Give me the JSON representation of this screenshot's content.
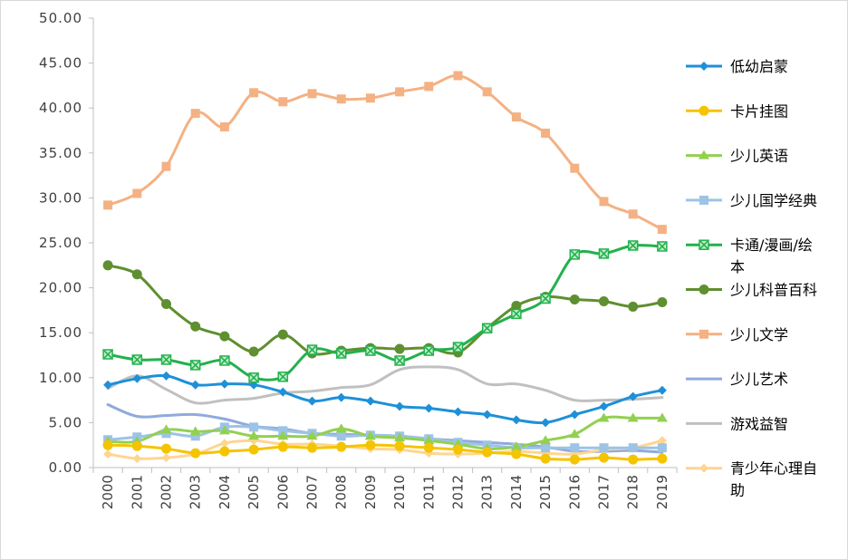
{
  "chart_data": {
    "type": "line",
    "title": "",
    "xlabel": "",
    "ylabel": "",
    "ylim": [
      0,
      50
    ],
    "y_ticks": [
      "0.00",
      "5.00",
      "10.00",
      "15.00",
      "20.00",
      "25.00",
      "30.00",
      "35.00",
      "40.00",
      "45.00",
      "50.00"
    ],
    "grid": false,
    "legend_position": "right",
    "categories": [
      "2000",
      "2001",
      "2002",
      "2003",
      "2004",
      "2005",
      "2006",
      "2007",
      "2008",
      "2009",
      "2010",
      "2011",
      "2012",
      "2013",
      "2014",
      "2015",
      "2016",
      "2017",
      "2018",
      "2019"
    ],
    "series": [
      {
        "name": "低幼启蒙",
        "color": "#1e90d8",
        "marker": "diamond",
        "values": [
          9.2,
          9.9,
          10.2,
          9.2,
          9.3,
          9.2,
          8.4,
          7.4,
          7.8,
          7.4,
          6.8,
          6.6,
          6.2,
          5.9,
          5.3,
          5.0,
          5.9,
          6.8,
          7.9,
          8.6
        ]
      },
      {
        "name": "卡片挂图",
        "color": "#f5c400",
        "marker": "circle",
        "values": [
          2.5,
          2.4,
          2.1,
          1.6,
          1.8,
          2.0,
          2.3,
          2.2,
          2.3,
          2.5,
          2.4,
          2.2,
          2.0,
          1.7,
          1.5,
          1.0,
          0.9,
          1.1,
          0.9,
          1.0
        ]
      },
      {
        "name": "少儿英语",
        "color": "#92d050",
        "marker": "triangle",
        "values": [
          2.9,
          2.9,
          4.2,
          4.0,
          4.1,
          3.5,
          3.5,
          3.5,
          4.3,
          3.5,
          3.3,
          3.0,
          2.6,
          2.1,
          2.3,
          3.0,
          3.7,
          5.5,
          5.5,
          5.5
        ]
      },
      {
        "name": "少儿国学经典",
        "color": "#9dc3e6",
        "marker": "square",
        "values": [
          3.1,
          3.4,
          3.8,
          3.5,
          4.5,
          4.5,
          4.1,
          3.8,
          3.5,
          3.6,
          3.5,
          3.2,
          2.8,
          2.5,
          2.2,
          2.2,
          2.2,
          2.2,
          2.2,
          2.2
        ]
      },
      {
        "name": "卡通/漫画/绘本",
        "color": "#22b14c",
        "marker": "cross-box",
        "values": [
          12.6,
          12.0,
          12.0,
          11.4,
          11.9,
          10.0,
          10.1,
          13.1,
          12.7,
          13.0,
          11.9,
          13.0,
          13.4,
          15.5,
          17.1,
          18.8,
          23.7,
          23.8,
          24.7,
          24.6
        ]
      },
      {
        "name": "少儿科普百科",
        "color": "#5f8f30",
        "marker": "circle",
        "values": [
          22.5,
          21.5,
          18.2,
          15.7,
          14.6,
          12.9,
          14.8,
          12.7,
          13.0,
          13.3,
          13.2,
          13.3,
          12.8,
          15.5,
          18.0,
          19.0,
          18.7,
          18.5,
          17.9,
          18.4
        ]
      },
      {
        "name": "少儿文学",
        "color": "#f4b183",
        "marker": "square",
        "values": [
          29.2,
          30.5,
          33.5,
          39.4,
          37.9,
          41.7,
          40.7,
          41.6,
          41.0,
          41.1,
          41.8,
          42.4,
          43.6,
          41.8,
          39.0,
          37.2,
          33.3,
          29.6,
          28.2,
          26.5
        ]
      },
      {
        "name": "少儿艺术",
        "color": "#8faadc",
        "marker": "none",
        "values": [
          7.0,
          5.7,
          5.8,
          5.9,
          5.4,
          4.6,
          4.3,
          3.8,
          3.7,
          3.6,
          3.5,
          3.2,
          3.0,
          2.8,
          2.6,
          2.3,
          1.8,
          1.8,
          1.9,
          1.7
        ]
      },
      {
        "name": "游戏益智",
        "color": "#c0c0c0",
        "marker": "none",
        "values": [
          8.8,
          10.2,
          8.7,
          7.2,
          7.5,
          7.7,
          8.3,
          8.5,
          8.9,
          9.2,
          10.9,
          11.2,
          10.9,
          9.3,
          9.3,
          8.6,
          7.5,
          7.5,
          7.6,
          7.8
        ]
      },
      {
        "name": "青少年心理自助",
        "color": "#ffd591",
        "marker": "diamond",
        "values": [
          1.5,
          1.0,
          1.1,
          1.5,
          2.7,
          3.0,
          2.6,
          2.6,
          2.4,
          2.1,
          2.0,
          1.6,
          1.5,
          1.6,
          1.8,
          1.6,
          1.5,
          2.0,
          2.2,
          3.0
        ]
      }
    ]
  }
}
